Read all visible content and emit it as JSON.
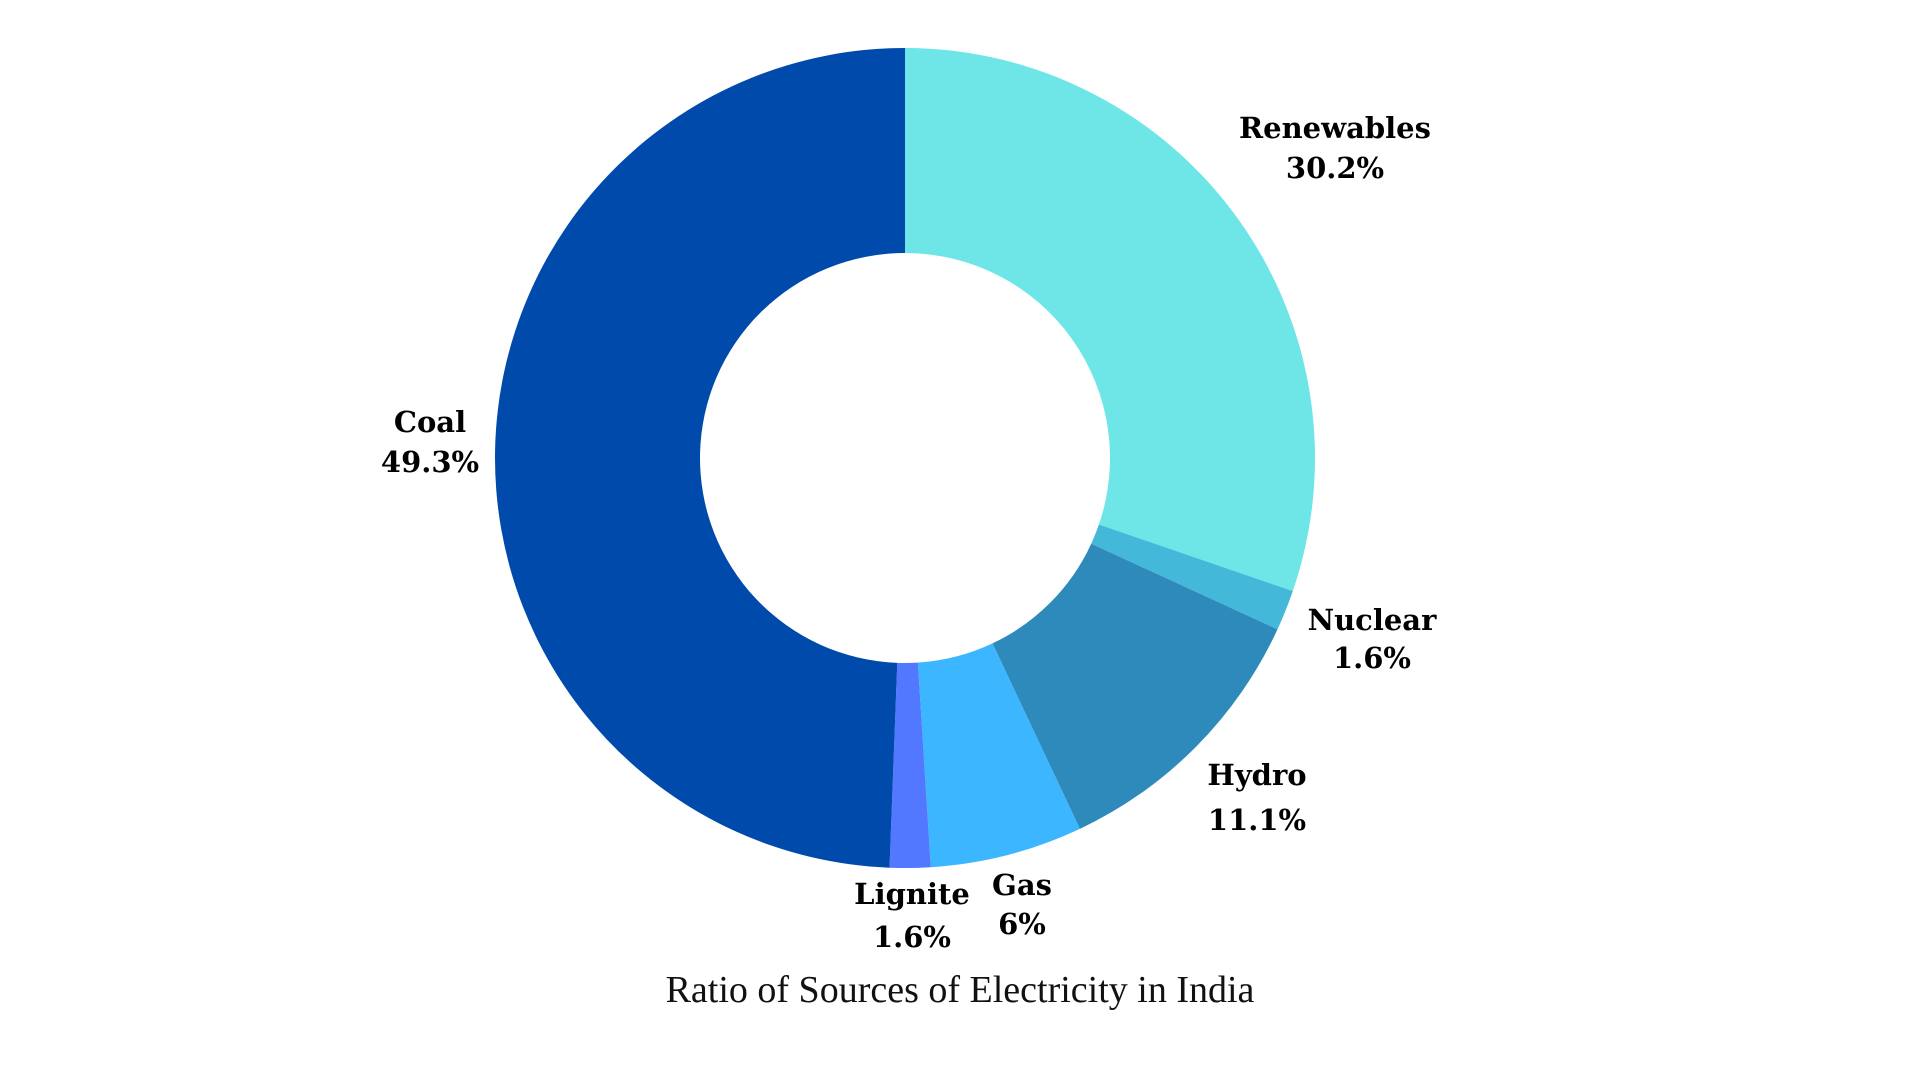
{
  "chart_data": {
    "type": "pie",
    "donut": true,
    "title": "Ratio of Sources of Electricity in India",
    "slices": [
      {
        "label": "Renewables",
        "value": 30.2,
        "value_label": "30.2%",
        "color": "#6ee6e8"
      },
      {
        "label": "Nuclear",
        "value": 1.6,
        "value_label": "1.6%",
        "color": "#44b8d8"
      },
      {
        "label": "Hydro",
        "value": 11.1,
        "value_label": "11.1%",
        "color": "#2e8aba"
      },
      {
        "label": "Gas",
        "value": 6,
        "value_label": "6%",
        "color": "#3cb6ff"
      },
      {
        "label": "Lignite",
        "value": 1.6,
        "value_label": "1.6%",
        "color": "#5278ff"
      },
      {
        "label": "Coal",
        "value": 49.3,
        "value_label": "49.3%",
        "color": "#004aab"
      }
    ],
    "start_position": "top",
    "direction": "clockwise"
  }
}
